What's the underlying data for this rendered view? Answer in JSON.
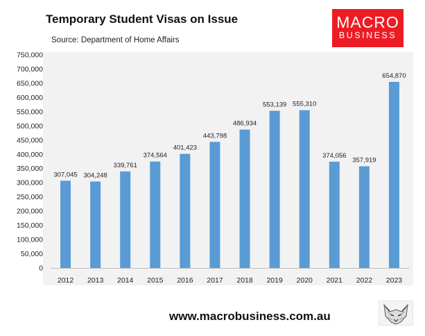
{
  "header": {
    "title": "Temporary Student Visas on Issue",
    "subtitle": "Source: Department of Home Affairs"
  },
  "brand": {
    "logo_line1": "MACRO",
    "logo_line2": "BUSINESS",
    "logo_color": "#ed1c24",
    "footer_url": "www.macrobusiness.com.au",
    "mascot_icon": "fox-icon"
  },
  "colors": {
    "bar": "#5b9bd5",
    "plot_background": "#f2f2f2",
    "axis_text": "#222222"
  },
  "chart_data": {
    "type": "bar",
    "title": "Temporary Student Visas on Issue",
    "subtitle": "Source: Department of Home Affairs",
    "xlabel": "",
    "ylabel": "",
    "categories": [
      "2012",
      "2013",
      "2014",
      "2015",
      "2016",
      "2017",
      "2018",
      "2019",
      "2020",
      "2021",
      "2022",
      "2023"
    ],
    "values": [
      307045,
      304248,
      339761,
      374564,
      401423,
      443798,
      486934,
      553139,
      555310,
      374056,
      357919,
      654870
    ],
    "data_labels": [
      "307,045",
      "304,248",
      "339,761",
      "374,564",
      "401,423",
      "443,798",
      "486,934",
      "553,139",
      "555,310",
      "374,056",
      "357,919",
      "654,870"
    ],
    "ylim": [
      0,
      750000
    ],
    "yticks": [
      0,
      50000,
      100000,
      150000,
      200000,
      250000,
      300000,
      350000,
      400000,
      450000,
      500000,
      550000,
      600000,
      650000,
      700000,
      750000
    ],
    "ytick_labels": [
      "0",
      "50,000",
      "100,000",
      "150,000",
      "200,000",
      "250,000",
      "300,000",
      "350,000",
      "400,000",
      "450,000",
      "500,000",
      "550,000",
      "600,000",
      "650,000",
      "700,000",
      "750,000"
    ],
    "grid": false,
    "legend": "none"
  }
}
